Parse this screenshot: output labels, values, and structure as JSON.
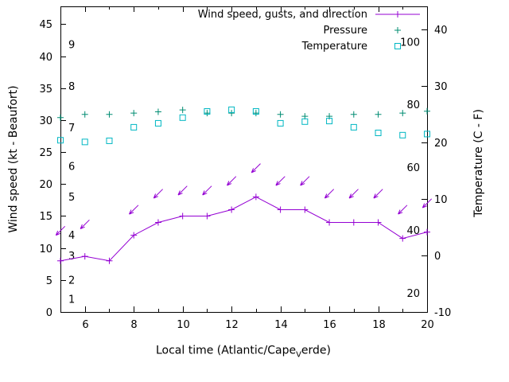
{
  "page": {
    "background": "#ffffff"
  },
  "chart_data": {
    "type": "line",
    "title": "",
    "xlabel": {
      "pre": "Local time (Atlantic/Cape",
      "sub": "V",
      "post": "erde)"
    },
    "ylabel": "Wind speed (kt - Beaufort)",
    "y2label": "Temperature (C - F)",
    "x": [
      5,
      6,
      7,
      8,
      9,
      10,
      11,
      12,
      13,
      14,
      15,
      16,
      17,
      18,
      19,
      20
    ],
    "xlim": [
      5,
      20
    ],
    "xticks": [
      6,
      8,
      10,
      12,
      14,
      16,
      18,
      20
    ],
    "yticks_left": [
      0,
      5,
      10,
      15,
      20,
      25,
      30,
      35,
      40,
      45
    ],
    "ylim_left_kt": [
      0,
      47.8
    ],
    "yticks_right": [
      -10,
      0,
      10,
      20,
      30,
      40
    ],
    "ylim_right_c": [
      -10,
      44.1
    ],
    "beaufort_scale_labels": [
      {
        "label": "1",
        "kt": 2
      },
      {
        "label": "2",
        "kt": 5
      },
      {
        "label": "3",
        "kt": 8.8
      },
      {
        "label": "4",
        "kt": 12
      },
      {
        "label": "5",
        "kt": 18
      },
      {
        "label": "6",
        "kt": 22.8
      },
      {
        "label": "7",
        "kt": 28.8
      },
      {
        "label": "8",
        "kt": 35.3
      },
      {
        "label": "9",
        "kt": 41.8
      }
    ],
    "fahrenheit_scale_labels": [
      {
        "label": "20",
        "f": 20
      },
      {
        "label": "40",
        "f": 40
      },
      {
        "label": "60",
        "f": 60
      },
      {
        "label": "80",
        "f": 80
      },
      {
        "label": "100",
        "f": 100
      }
    ],
    "series": [
      {
        "name": "Wind speed, gusts, and direction",
        "type": "line",
        "marker": "plus",
        "color": "#9400d3",
        "axis": "left",
        "values": [
          8,
          8.7,
          8,
          12,
          14,
          15,
          15,
          16,
          18,
          16,
          16,
          14,
          14,
          14,
          11.5,
          12.5
        ]
      },
      {
        "name": "Wind gusts with direction arrows",
        "type": "vector",
        "color": "#9400d3",
        "axis": "left",
        "arrow_angle_deg": 135,
        "values": [
          12.7,
          13.7,
          null,
          16,
          18.5,
          19,
          19,
          20.5,
          22.5,
          20.5,
          20.5,
          18.5,
          18.5,
          18.5,
          16,
          17
        ]
      },
      {
        "name": "Pressure",
        "type": "scatter",
        "marker": "plus",
        "color": "#008c72",
        "axis": "left",
        "plotted_on": "left-axis equivalent (no pressure axis shown)",
        "values": [
          30.4,
          30.9,
          30.9,
          31.1,
          31.3,
          31.6,
          31.1,
          31.1,
          31.1,
          30.9,
          30.6,
          30.6,
          30.9,
          30.9,
          31.1,
          31.4
        ]
      },
      {
        "name": "Temperature",
        "type": "scatter",
        "marker": "open-square",
        "color": "#00b7c3",
        "axis": "right",
        "values": [
          20.4,
          20.1,
          20.3,
          22.7,
          23.4,
          24.4,
          25.5,
          25.8,
          25.5,
          23.4,
          23.7,
          23.8,
          22.7,
          21.7,
          21.3,
          21.5
        ]
      }
    ],
    "legend": {
      "position": "top-right",
      "entries": [
        {
          "label": "Wind speed, gusts, and direction",
          "sample": "line-plus",
          "color": "#9400d3"
        },
        {
          "label": "Pressure",
          "sample": "plus",
          "color": "#008c72"
        },
        {
          "label": "Temperature",
          "sample": "open-square",
          "color": "#00b7c3"
        }
      ]
    },
    "grid": "off"
  }
}
